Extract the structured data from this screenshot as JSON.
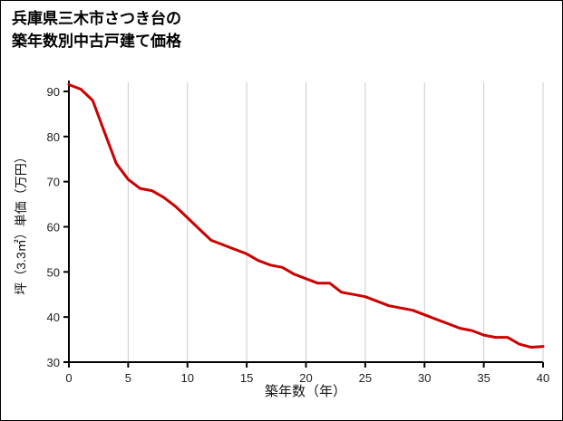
{
  "page": {
    "background": "#ffffff",
    "border_color": "#000000"
  },
  "title": {
    "line1": "兵庫県三木市さつき台の",
    "line2": "築年数別中古戸建て価格"
  },
  "chart_data": {
    "type": "line",
    "title": "兵庫県三木市さつき台の築年数別中古戸建て価格",
    "xlabel": "築年数（年）",
    "ylabel": "坪（3.3㎡）単価（万円）",
    "xlim": [
      0,
      40
    ],
    "ylim": [
      30,
      92
    ],
    "xticks": [
      0,
      5,
      10,
      15,
      20,
      25,
      30,
      35,
      40
    ],
    "yticks": [
      30,
      40,
      50,
      60,
      70,
      80,
      90
    ],
    "grid": "vertical-only",
    "legend": "none",
    "colors": {
      "line": "#cc0000",
      "grid": "#cccccc",
      "axis": "#000000",
      "tick_text": "#222222"
    },
    "series": [
      {
        "name": "坪単価",
        "x": [
          0,
          1,
          2,
          3,
          4,
          5,
          6,
          7,
          8,
          9,
          10,
          11,
          12,
          13,
          14,
          15,
          16,
          17,
          18,
          19,
          20,
          21,
          22,
          23,
          24,
          25,
          26,
          27,
          28,
          29,
          30,
          31,
          32,
          33,
          34,
          35,
          36,
          37,
          38,
          39,
          40
        ],
        "y": [
          91.5,
          90.5,
          88,
          81,
          74,
          70.5,
          68.5,
          68,
          66.5,
          64.5,
          62,
          59.5,
          57,
          56,
          55,
          54,
          52.5,
          51.5,
          51,
          49.5,
          48.5,
          47.5,
          47.5,
          45.5,
          45,
          44.5,
          43.5,
          42.5,
          42,
          41.5,
          40.5,
          39.5,
          38.5,
          37.5,
          37,
          36,
          35.5,
          35.5,
          34,
          33.3,
          33.5
        ]
      }
    ]
  }
}
